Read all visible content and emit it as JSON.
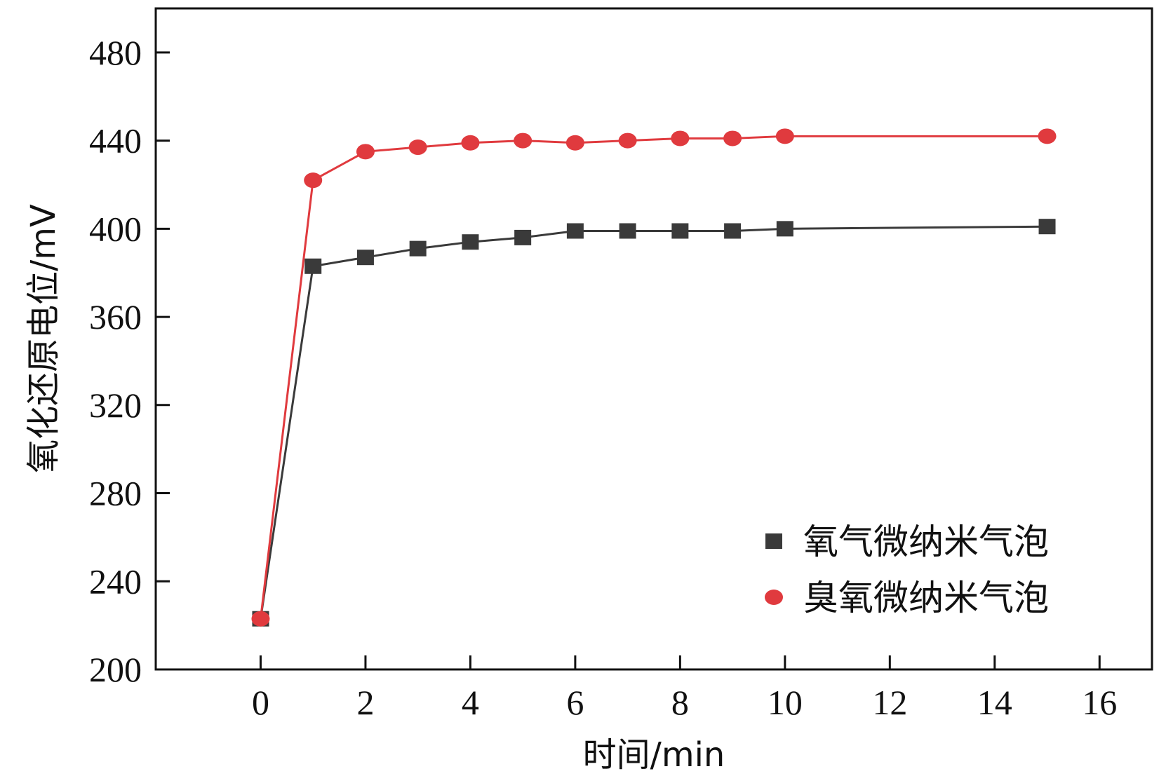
{
  "chart_data": {
    "type": "line",
    "title": "",
    "xlabel": "时间/min",
    "ylabel": "氧化还原电位/mV",
    "xlim": [
      -2,
      17
    ],
    "ylim": [
      200,
      500
    ],
    "xticks": [
      0,
      2,
      4,
      6,
      8,
      10,
      12,
      14,
      16
    ],
    "yticks": [
      200,
      240,
      280,
      320,
      360,
      400,
      440,
      480
    ],
    "legend_position": "bottom-right",
    "grid": false,
    "series": [
      {
        "name": "氧气微纳米气泡",
        "marker": "square",
        "color": "#3a3a3a",
        "x": [
          0,
          1,
          2,
          3,
          4,
          5,
          6,
          7,
          8,
          9,
          10,
          15
        ],
        "y": [
          223,
          383,
          387,
          391,
          394,
          396,
          399,
          399,
          399,
          399,
          400,
          401
        ]
      },
      {
        "name": "臭氧微纳米气泡",
        "marker": "circle",
        "color": "#e03a3e",
        "x": [
          0,
          1,
          2,
          3,
          4,
          5,
          6,
          7,
          8,
          9,
          10,
          15
        ],
        "y": [
          223,
          422,
          435,
          437,
          439,
          440,
          439,
          440,
          441,
          441,
          442,
          442
        ]
      }
    ]
  }
}
